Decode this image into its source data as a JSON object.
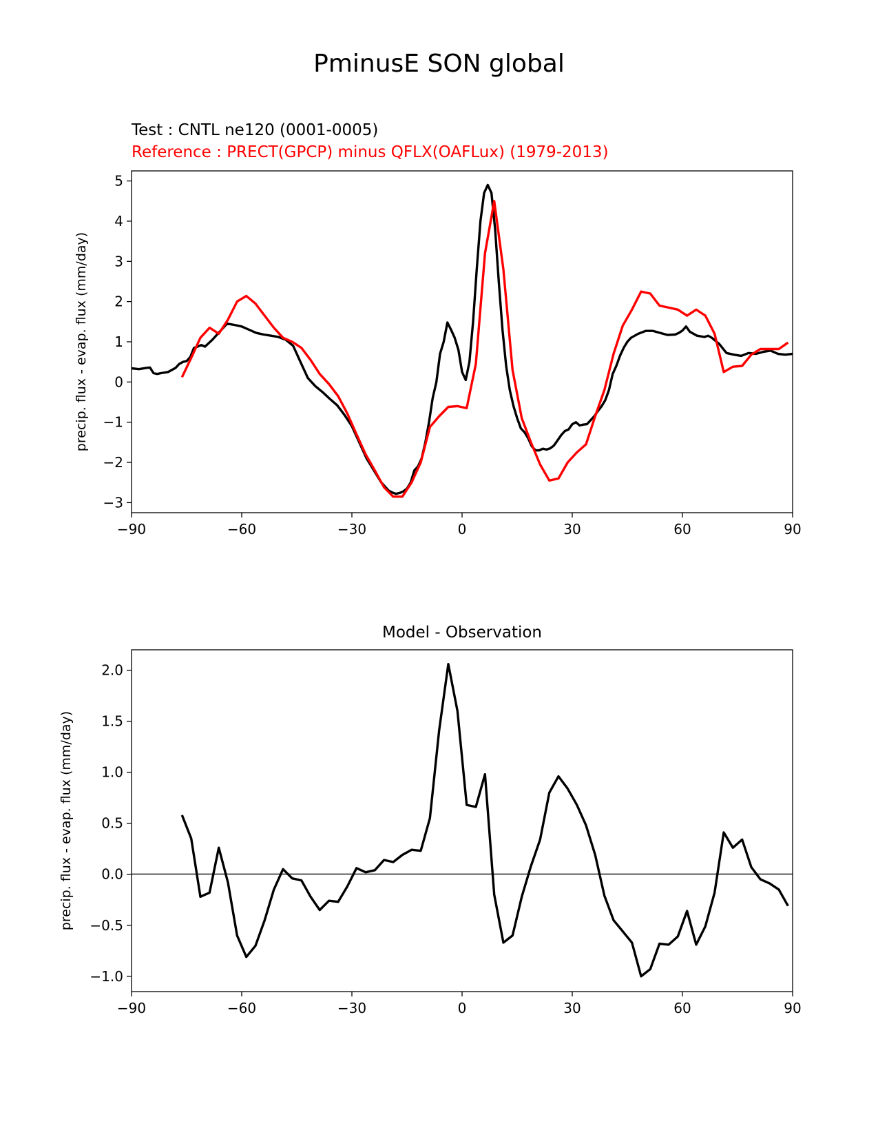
{
  "figure": {
    "title": "PminusE SON global",
    "test_label": "Test : CNTL ne120 (0001-0005)",
    "reference_label": "Reference : PRECT(GPCP) minus QFLX(OAFLux) (1979-2013)",
    "diff_title": "Model - Observation"
  },
  "colors": {
    "test": "#000000",
    "reference": "#ff0000",
    "diff": "#000000",
    "zero_line": "#808080"
  },
  "chart_data": [
    {
      "type": "line",
      "title": "",
      "xlabel": "",
      "ylabel": "precip. flux - evap. flux (mm/day)",
      "xlim": [
        -90,
        90
      ],
      "ylim": [
        -3.25,
        5.25
      ],
      "xticks": [
        -90,
        -60,
        -30,
        0,
        30,
        60,
        90
      ],
      "xtick_labels": [
        "−90",
        "−60",
        "−30",
        "0",
        "30",
        "60",
        "90"
      ],
      "yticks": [
        -3,
        -2,
        -1,
        0,
        1,
        2,
        3,
        4,
        5
      ],
      "ytick_labels": [
        "−3",
        "−2",
        "−1",
        "0",
        "1",
        "2",
        "3",
        "4",
        "5"
      ],
      "series": [
        {
          "name": "Test : CNTL ne120 (0001-0005)",
          "color": "#000000",
          "x": [
            -90,
            -88,
            -86,
            -85,
            -84,
            -83,
            -82,
            -80,
            -78,
            -77,
            -76,
            -75,
            -74,
            -73,
            -72,
            -71,
            -70,
            -68,
            -66,
            -64,
            -62,
            -60,
            -58,
            -56,
            -54,
            -52,
            -50,
            -48,
            -46,
            -44,
            -42,
            -40,
            -38,
            -36,
            -34,
            -32,
            -30,
            -28,
            -26,
            -24,
            -22,
            -20,
            -19,
            -18,
            -17,
            -16,
            -15,
            -14,
            -13,
            -12,
            -11,
            -10,
            -9,
            -8,
            -7,
            -6,
            -5,
            -4,
            -3,
            -2,
            -1,
            0,
            1,
            2,
            3,
            4,
            5,
            6,
            7,
            8,
            9,
            10,
            11,
            12,
            13,
            14,
            15,
            16,
            17,
            18,
            19,
            20,
            21,
            22,
            23,
            24,
            25,
            26,
            27,
            28,
            29,
            30,
            31,
            32,
            33,
            34,
            35,
            36,
            37,
            38,
            39,
            40,
            41,
            42,
            43,
            44,
            45,
            46,
            47,
            48,
            50,
            52,
            54,
            56,
            58,
            59,
            60,
            61,
            62,
            64,
            66,
            67,
            68,
            70,
            72,
            74,
            76,
            78,
            80,
            82,
            84,
            86,
            88,
            90
          ],
          "y": [
            0.34,
            0.32,
            0.35,
            0.36,
            0.22,
            0.2,
            0.22,
            0.25,
            0.35,
            0.45,
            0.5,
            0.52,
            0.62,
            0.85,
            0.88,
            0.92,
            0.88,
            1.05,
            1.25,
            1.45,
            1.42,
            1.38,
            1.3,
            1.22,
            1.18,
            1.15,
            1.12,
            1.05,
            0.9,
            0.5,
            0.1,
            -0.1,
            -0.25,
            -0.42,
            -0.58,
            -0.82,
            -1.1,
            -1.5,
            -1.9,
            -2.2,
            -2.5,
            -2.7,
            -2.75,
            -2.78,
            -2.76,
            -2.72,
            -2.65,
            -2.5,
            -2.2,
            -2.1,
            -1.9,
            -1.5,
            -1.0,
            -0.4,
            0.0,
            0.7,
            1.0,
            1.48,
            1.3,
            1.1,
            0.8,
            0.25,
            0.05,
            0.5,
            1.5,
            2.8,
            4.0,
            4.7,
            4.9,
            4.7,
            3.8,
            2.5,
            1.3,
            0.4,
            -0.2,
            -0.6,
            -0.9,
            -1.15,
            -1.25,
            -1.4,
            -1.6,
            -1.7,
            -1.7,
            -1.66,
            -1.68,
            -1.65,
            -1.58,
            -1.45,
            -1.32,
            -1.22,
            -1.18,
            -1.05,
            -1.0,
            -1.08,
            -1.06,
            -1.05,
            -0.95,
            -0.85,
            -0.72,
            -0.6,
            -0.45,
            -0.2,
            0.2,
            0.4,
            0.65,
            0.85,
            1.0,
            1.1,
            1.15,
            1.2,
            1.27,
            1.27,
            1.22,
            1.17,
            1.18,
            1.22,
            1.28,
            1.38,
            1.25,
            1.15,
            1.12,
            1.15,
            1.1,
            0.95,
            0.72,
            0.68,
            0.65,
            0.72,
            0.7,
            0.75,
            0.78,
            0.7,
            0.68,
            0.7
          ]
        },
        {
          "name": "Reference : PRECT(GPCP) minus QFLX(OAFLux) (1979-2013)",
          "color": "#ff0000",
          "x": [
            -76.25,
            -73.75,
            -71.25,
            -68.75,
            -66.25,
            -63.75,
            -61.25,
            -58.75,
            -56.25,
            -53.75,
            -51.25,
            -48.75,
            -46.25,
            -43.75,
            -41.25,
            -38.75,
            -36.25,
            -33.75,
            -31.25,
            -28.75,
            -26.25,
            -23.75,
            -21.25,
            -18.75,
            -16.25,
            -13.75,
            -11.25,
            -8.75,
            -6.25,
            -3.75,
            -1.25,
            1.25,
            3.75,
            6.25,
            8.75,
            11.25,
            13.75,
            16.25,
            18.75,
            21.25,
            23.75,
            26.25,
            28.75,
            31.25,
            33.75,
            36.25,
            38.75,
            41.25,
            43.75,
            46.25,
            48.75,
            51.25,
            53.75,
            56.25,
            58.75,
            61.25,
            63.75,
            66.25,
            68.75,
            71.25,
            73.75,
            76.25,
            78.75,
            81.25,
            83.75,
            86.25,
            88.75
          ],
          "y": [
            0.12,
            0.6,
            1.1,
            1.35,
            1.2,
            1.55,
            2.0,
            2.14,
            1.95,
            1.65,
            1.35,
            1.1,
            1.0,
            0.85,
            0.55,
            0.2,
            -0.05,
            -0.35,
            -0.78,
            -1.3,
            -1.8,
            -2.2,
            -2.62,
            -2.85,
            -2.85,
            -2.5,
            -2.0,
            -1.12,
            -0.85,
            -0.62,
            -0.6,
            -0.65,
            0.45,
            3.2,
            4.5,
            2.8,
            0.3,
            -0.9,
            -1.5,
            -2.05,
            -2.45,
            -2.4,
            -2.0,
            -1.75,
            -1.55,
            -0.85,
            -0.2,
            0.7,
            1.4,
            1.8,
            2.25,
            2.2,
            1.9,
            1.85,
            1.8,
            1.65,
            1.8,
            1.65,
            1.2,
            0.25,
            0.38,
            0.4,
            0.68,
            0.82,
            0.82,
            0.82,
            0.98
          ]
        }
      ]
    },
    {
      "type": "line",
      "title": "Model - Observation",
      "xlabel": "",
      "ylabel": "precip. flux - evap. flux (mm/day)",
      "xlim": [
        -90,
        90
      ],
      "ylim": [
        -1.15,
        2.2
      ],
      "xticks": [
        -90,
        -60,
        -30,
        0,
        30,
        60,
        90
      ],
      "xtick_labels": [
        "−90",
        "−60",
        "−30",
        "0",
        "30",
        "60",
        "90"
      ],
      "yticks": [
        -1.0,
        -0.5,
        0.0,
        0.5,
        1.0,
        1.5,
        2.0
      ],
      "ytick_labels": [
        "−1.0",
        "−0.5",
        "0.0",
        "0.5",
        "1.0",
        "1.5",
        "2.0"
      ],
      "zero_line": 0,
      "series": [
        {
          "name": "Model - Observation",
          "color": "#000000",
          "x": [
            -76.25,
            -73.75,
            -71.25,
            -68.75,
            -66.25,
            -63.75,
            -61.25,
            -58.75,
            -56.25,
            -53.75,
            -51.25,
            -48.75,
            -46.25,
            -43.75,
            -41.25,
            -38.75,
            -36.25,
            -33.75,
            -31.25,
            -28.75,
            -26.25,
            -23.75,
            -21.25,
            -18.75,
            -16.25,
            -13.75,
            -11.25,
            -8.75,
            -6.25,
            -3.75,
            -1.25,
            1.25,
            3.75,
            6.25,
            8.75,
            11.25,
            13.75,
            16.25,
            18.75,
            21.25,
            23.75,
            26.25,
            28.75,
            31.25,
            33.75,
            36.25,
            38.75,
            41.25,
            43.75,
            46.25,
            48.75,
            51.25,
            53.75,
            56.25,
            58.75,
            61.25,
            63.75,
            66.25,
            68.75,
            71.25,
            73.75,
            76.25,
            78.75,
            81.25,
            83.75,
            86.25,
            88.75
          ],
          "y": [
            0.58,
            0.35,
            -0.22,
            -0.18,
            0.26,
            -0.08,
            -0.6,
            -0.81,
            -0.7,
            -0.45,
            -0.15,
            0.05,
            -0.04,
            -0.06,
            -0.22,
            -0.35,
            -0.26,
            -0.27,
            -0.12,
            0.06,
            0.02,
            0.04,
            0.14,
            0.12,
            0.19,
            0.24,
            0.23,
            0.55,
            1.41,
            2.06,
            1.6,
            0.68,
            0.66,
            0.98,
            -0.2,
            -0.67,
            -0.6,
            -0.22,
            0.08,
            0.34,
            0.8,
            0.96,
            0.84,
            0.68,
            0.48,
            0.19,
            -0.21,
            -0.45,
            -0.56,
            -0.67,
            -1.0,
            -0.93,
            -0.68,
            -0.69,
            -0.61,
            -0.36,
            -0.69,
            -0.51,
            -0.18,
            0.41,
            0.26,
            0.34,
            0.07,
            -0.05,
            -0.09,
            -0.15,
            -0.31
          ]
        }
      ]
    }
  ]
}
